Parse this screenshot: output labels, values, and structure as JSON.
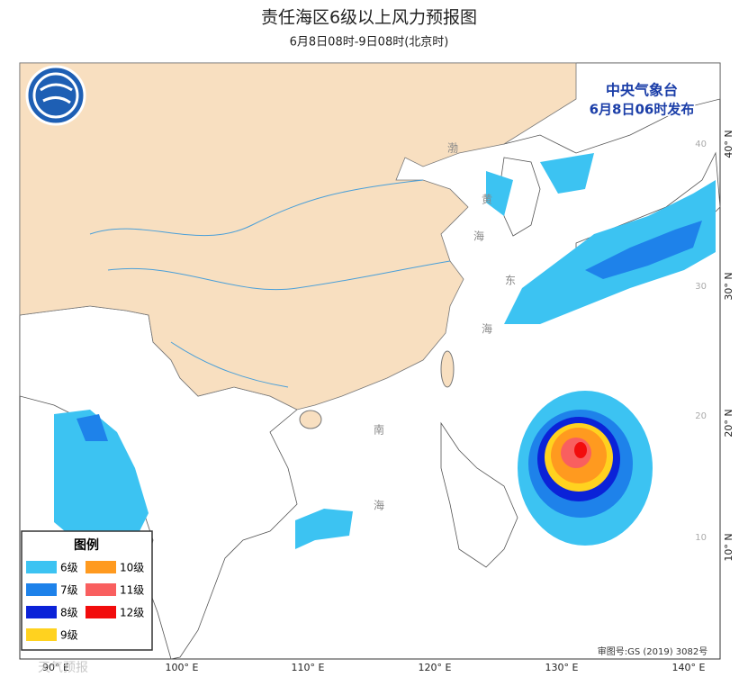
{
  "header": {
    "title": "责任海区6级以上风力预报图",
    "subtitle": "6月8日08时-9日08时(北京时)"
  },
  "issuer": {
    "agency": "中央气象台",
    "issue_time": "6月8日06时发布"
  },
  "legend": {
    "title": "图例",
    "items": [
      {
        "label": "6级",
        "color": "#3cc3f2"
      },
      {
        "label": "7级",
        "color": "#1e82ea"
      },
      {
        "label": "8级",
        "color": "#0b22d8"
      },
      {
        "label": "9级",
        "color": "#ffd21f"
      },
      {
        "label": "10级",
        "color": "#ff9a1f"
      },
      {
        "label": "11级",
        "color": "#f95f5f"
      },
      {
        "label": "12级",
        "color": "#f20c0c"
      }
    ]
  },
  "axes": {
    "longitude": [
      "90° E",
      "100° E",
      "110° E",
      "120° E",
      "130° E",
      "140° E"
    ],
    "latitude": [
      "40° N",
      "30° N",
      "20° N",
      "10° N"
    ],
    "latitude_inner": [
      "40",
      "30",
      "20",
      "10"
    ]
  },
  "map_labels": [
    "渤",
    "黄",
    "海",
    "东",
    "海",
    "南",
    "海"
  ],
  "footer": {
    "approval": "审图号:GS (2019) 3082号",
    "watermark": "天气预报"
  }
}
